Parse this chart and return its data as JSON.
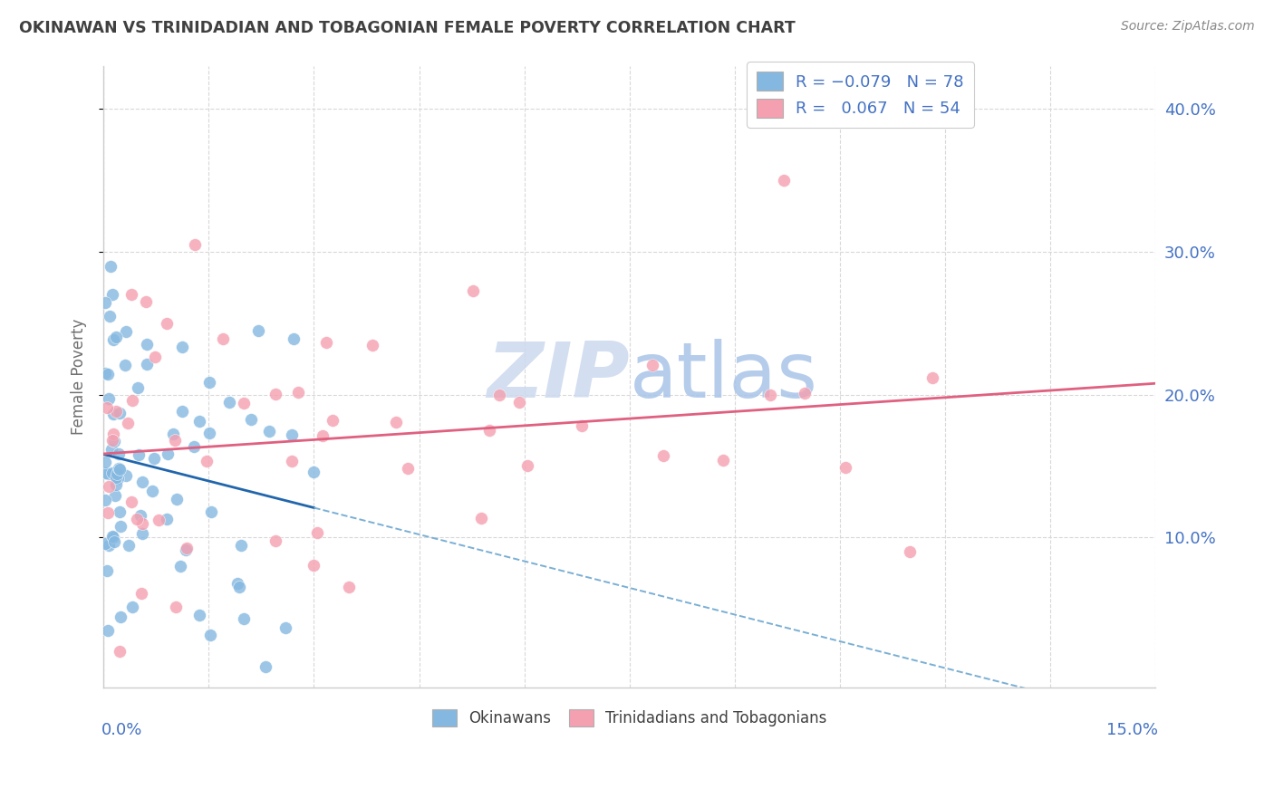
{
  "title": "OKINAWAN VS TRINIDADIAN AND TOBAGONIAN FEMALE POVERTY CORRELATION CHART",
  "source": "Source: ZipAtlas.com",
  "ylabel": "Female Poverty",
  "xlim": [
    0,
    0.15
  ],
  "ylim": [
    -0.005,
    0.43
  ],
  "okinawan_color": "#85b8e0",
  "trinidadian_color": "#f4a0b0",
  "okinawan_line_color": "#2166ac",
  "trinidadian_line_color": "#e06080",
  "background_color": "#ffffff",
  "grid_color": "#d8d8d8",
  "title_color": "#404040",
  "axis_label_color": "#4472c4",
  "watermark_text": "ZIPatlas",
  "ok_seed": 77,
  "tri_seed": 33
}
